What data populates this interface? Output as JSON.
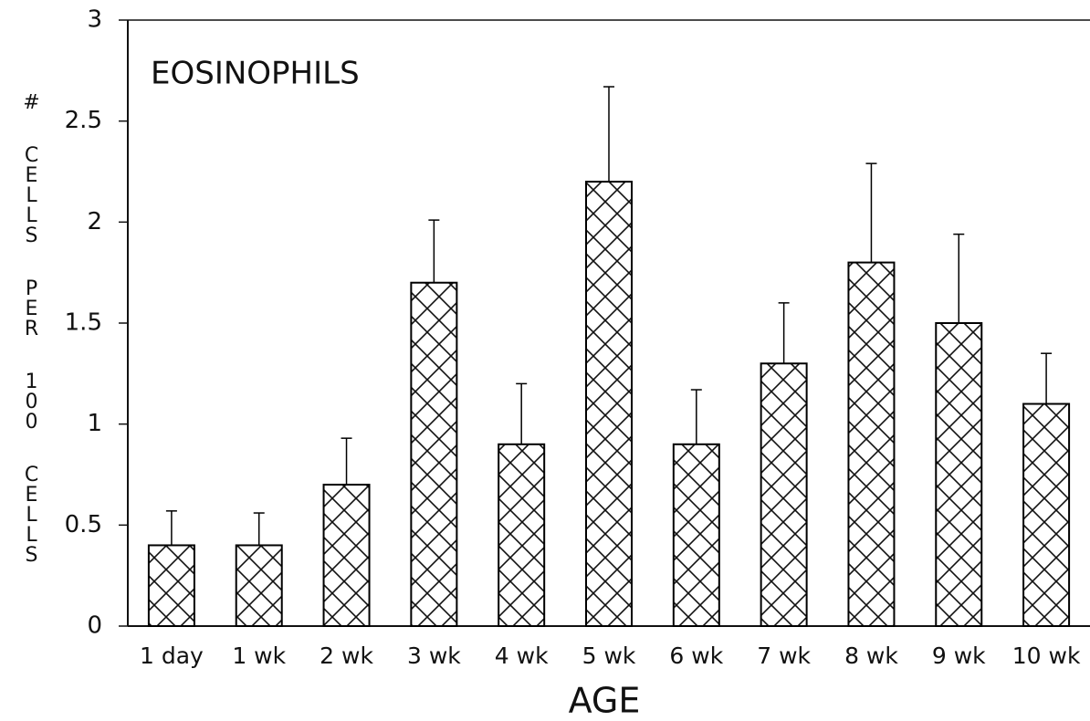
{
  "chart_data": {
    "type": "bar",
    "title": "EOSINOPHILS",
    "xlabel": "AGE",
    "ylabel": "# CELLS PER 100 CELLS",
    "categories": [
      "1 day",
      "1 wk",
      "2 wk",
      "3 wk",
      "4 wk",
      "5 wk",
      "6 wk",
      "7 wk",
      "8 wk",
      "9 wk",
      "10 wk"
    ],
    "values": [
      0.4,
      0.4,
      0.7,
      1.7,
      0.9,
      2.2,
      0.9,
      1.3,
      1.8,
      1.5,
      1.1
    ],
    "errors": [
      0.17,
      0.16,
      0.23,
      0.31,
      0.3,
      0.47,
      0.27,
      0.3,
      0.49,
      0.44,
      0.25
    ],
    "color": "#000000",
    "ylim": [
      0,
      3
    ],
    "yticks": [
      0,
      0.5,
      1,
      1.5,
      2,
      2.5,
      3
    ],
    "grid": false
  }
}
